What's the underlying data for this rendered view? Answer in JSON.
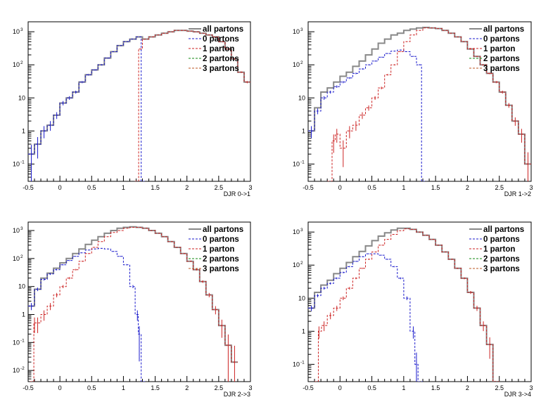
{
  "legend_entries": [
    {
      "label": "all partons",
      "color": "#888888",
      "dash": false
    },
    {
      "label": "0 partons",
      "color": "#1a1acc",
      "dash": true
    },
    {
      "label": "1 parton",
      "color": "#cc2222",
      "dash": true
    },
    {
      "label": "2 partons",
      "color": "#118811",
      "dash": true
    },
    {
      "label": "3 partons",
      "color": "#bb5522",
      "dash": true
    }
  ],
  "chart_data": [
    {
      "type": "line",
      "xlabel": "DJR 0->1",
      "xlim": [
        -0.5,
        3
      ],
      "x_ticks": [
        "-0.5",
        "0",
        "0.5",
        "1",
        "1.5",
        "2",
        "2.5",
        "3"
      ],
      "y_log": true,
      "ylim": [
        0.03,
        2000
      ],
      "y_ticks": [
        {
          "v": 0.1,
          "t": "10",
          "e": "-1"
        },
        {
          "v": 1,
          "t": "1",
          "e": ""
        },
        {
          "v": 10,
          "t": "10",
          "e": ""
        },
        {
          "v": 100,
          "t": "10",
          "e": "2"
        },
        {
          "v": 1000,
          "t": "10",
          "e": "3"
        }
      ],
      "legend_placement": "top-right",
      "series": [
        {
          "name": "all partons",
          "color": "#888888",
          "dash": false,
          "err": false,
          "x": [
            -0.45,
            -0.35,
            -0.25,
            -0.15,
            -0.05,
            0.05,
            0.15,
            0.25,
            0.35,
            0.45,
            0.55,
            0.65,
            0.75,
            0.85,
            0.95,
            1.05,
            1.15,
            1.25,
            1.35,
            1.45,
            1.55,
            1.65,
            1.75,
            1.85,
            1.95,
            2.05,
            2.15,
            2.25,
            2.35,
            2.45,
            2.55,
            2.65,
            2.75,
            2.85,
            2.95
          ],
          "y": [
            0.2,
            0.4,
            1,
            1.5,
            3,
            7,
            10,
            15,
            30,
            50,
            70,
            100,
            160,
            250,
            380,
            500,
            600,
            700,
            600,
            700,
            800,
            900,
            1000,
            1100,
            1100,
            1050,
            1000,
            900,
            800,
            700,
            500,
            300,
            150,
            60,
            30
          ]
        },
        {
          "name": "0 partons",
          "color": "#1a1acc",
          "dash": true,
          "err": true,
          "x": [
            -0.45,
            -0.35,
            -0.25,
            -0.15,
            -0.05,
            0.05,
            0.15,
            0.25,
            0.35,
            0.45,
            0.55,
            0.65,
            0.75,
            0.85,
            0.95,
            1.05,
            1.15,
            1.25,
            1.31
          ],
          "y": [
            0.2,
            0.4,
            1,
            1.5,
            3,
            7,
            10,
            15,
            30,
            50,
            70,
            100,
            160,
            250,
            380,
            500,
            600,
            700,
            0.01
          ]
        },
        {
          "name": "1 parton",
          "color": "#cc2222",
          "dash": true,
          "err": true,
          "x": [
            1.23,
            1.25,
            1.35,
            1.45,
            1.55,
            1.65,
            1.75,
            1.85,
            1.95,
            2.05,
            2.15,
            2.25,
            2.35,
            2.45,
            2.55,
            2.65,
            2.75,
            2.85,
            2.95
          ],
          "y": [
            0.01,
            300,
            600,
            700,
            800,
            900,
            1000,
            1100,
            1100,
            1050,
            1000,
            900,
            800,
            700,
            500,
            300,
            150,
            60,
            30
          ]
        }
      ]
    },
    {
      "type": "line",
      "xlabel": "DJR 1->2",
      "xlim": [
        -0.5,
        3
      ],
      "x_ticks": [
        "-0.5",
        "0",
        "0.5",
        "1",
        "1.5",
        "2",
        "2.5",
        "3"
      ],
      "y_log": true,
      "ylim": [
        0.03,
        2000
      ],
      "y_ticks": [
        {
          "v": 0.1,
          "t": "10",
          "e": "-1"
        },
        {
          "v": 1,
          "t": "1",
          "e": ""
        },
        {
          "v": 10,
          "t": "10",
          "e": ""
        },
        {
          "v": 100,
          "t": "10",
          "e": "2"
        },
        {
          "v": 1000,
          "t": "10",
          "e": "3"
        }
      ],
      "legend_placement": "top-right",
      "series": [
        {
          "name": "all partons",
          "color": "#888888",
          "dash": false,
          "err": false,
          "x": [
            -0.45,
            -0.35,
            -0.25,
            -0.15,
            -0.05,
            0.05,
            0.15,
            0.25,
            0.35,
            0.45,
            0.55,
            0.65,
            0.75,
            0.85,
            0.95,
            1.05,
            1.15,
            1.25,
            1.35,
            1.45,
            1.55,
            1.65,
            1.75,
            1.85,
            1.95,
            2.05,
            2.15,
            2.25,
            2.35,
            2.45,
            2.55,
            2.65,
            2.75,
            2.85,
            2.95
          ],
          "y": [
            1,
            5,
            15,
            20,
            30,
            45,
            60,
            90,
            130,
            200,
            300,
            450,
            600,
            800,
            900,
            1100,
            1200,
            1300,
            1350,
            1300,
            1250,
            1100,
            900,
            700,
            500,
            300,
            180,
            100,
            55,
            30,
            15,
            6,
            2,
            0.8,
            0.1
          ]
        },
        {
          "name": "0 partons",
          "color": "#1a1acc",
          "dash": true,
          "err": true,
          "x": [
            -0.45,
            -0.35,
            -0.25,
            -0.15,
            -0.05,
            0.05,
            0.15,
            0.25,
            0.35,
            0.45,
            0.55,
            0.65,
            0.75,
            0.85,
            0.95,
            1.05,
            1.15,
            1.25,
            1.31
          ],
          "y": [
            1,
            4,
            10,
            15,
            22,
            30,
            40,
            55,
            75,
            100,
            130,
            170,
            220,
            260,
            280,
            250,
            180,
            100,
            0.01
          ]
        },
        {
          "name": "1 parton",
          "color": "#cc2222",
          "dash": true,
          "err": true,
          "x": [
            -0.15,
            -0.1,
            -0.05,
            0.05,
            0.15,
            0.25,
            0.35,
            0.45,
            0.55,
            0.65,
            0.75,
            0.85,
            0.95,
            1.05,
            1.15,
            1.25,
            1.35,
            1.45,
            1.55,
            1.65,
            1.75,
            1.85,
            1.95,
            2.05,
            2.15,
            2.25,
            2.35,
            2.45,
            2.55,
            2.65,
            2.75,
            2.85,
            2.95
          ],
          "y": [
            0.01,
            0.5,
            0.8,
            0.3,
            1,
            1.5,
            3,
            5,
            10,
            20,
            50,
            100,
            250,
            500,
            800,
            1100,
            1300,
            1300,
            1250,
            1100,
            900,
            700,
            500,
            300,
            180,
            100,
            55,
            30,
            15,
            6,
            2,
            0.8,
            0.1
          ]
        }
      ]
    },
    {
      "type": "line",
      "xlabel": "DJR 2->3",
      "xlim": [
        -0.5,
        3
      ],
      "x_ticks": [
        "-0.5",
        "0",
        "0.5",
        "1",
        "1.5",
        "2",
        "2.5",
        "3"
      ],
      "y_log": true,
      "ylim": [
        0.004,
        2000
      ],
      "y_ticks": [
        {
          "v": 0.01,
          "t": "10",
          "e": "-2"
        },
        {
          "v": 0.1,
          "t": "10",
          "e": "-1"
        },
        {
          "v": 1,
          "t": "1",
          "e": ""
        },
        {
          "v": 10,
          "t": "10",
          "e": ""
        },
        {
          "v": 100,
          "t": "10",
          "e": "2"
        },
        {
          "v": 1000,
          "t": "10",
          "e": "3"
        }
      ],
      "legend_placement": "top-right",
      "series": [
        {
          "name": "all partons",
          "color": "#888888",
          "dash": false,
          "err": false,
          "x": [
            -0.45,
            -0.35,
            -0.25,
            -0.15,
            -0.05,
            0.05,
            0.15,
            0.25,
            0.35,
            0.45,
            0.55,
            0.65,
            0.75,
            0.85,
            0.95,
            1.05,
            1.15,
            1.25,
            1.35,
            1.45,
            1.55,
            1.65,
            1.75,
            1.85,
            1.95,
            2.05,
            2.15,
            2.25,
            2.35,
            2.45,
            2.55,
            2.65,
            2.75
          ],
          "y": [
            2,
            8,
            20,
            30,
            45,
            70,
            100,
            150,
            220,
            320,
            450,
            600,
            800,
            1000,
            1200,
            1300,
            1350,
            1300,
            1200,
            1000,
            800,
            600,
            400,
            250,
            150,
            80,
            40,
            15,
            5,
            1.5,
            0.4,
            0.08,
            0.02
          ]
        },
        {
          "name": "0 partons",
          "color": "#1a1acc",
          "dash": true,
          "err": true,
          "x": [
            -0.45,
            -0.35,
            -0.25,
            -0.15,
            -0.05,
            0.05,
            0.15,
            0.25,
            0.35,
            0.45,
            0.55,
            0.65,
            0.75,
            0.85,
            0.95,
            1.05,
            1.15,
            1.22,
            1.25,
            1.31
          ],
          "y": [
            2,
            8,
            18,
            28,
            40,
            60,
            85,
            120,
            160,
            200,
            220,
            230,
            220,
            180,
            120,
            60,
            10,
            1,
            0.2,
            0.003
          ]
        },
        {
          "name": "1 parton",
          "color": "#cc2222",
          "dash": true,
          "err": true,
          "x": [
            -0.42,
            -0.4,
            -0.35,
            -0.25,
            -0.15,
            -0.05,
            0.05,
            0.15,
            0.25,
            0.35,
            0.45,
            0.55,
            0.65,
            0.75,
            0.85,
            0.95,
            1.05,
            1.15,
            1.25,
            1.35,
            1.45,
            1.55,
            1.65,
            1.75,
            1.85,
            1.95,
            2.05,
            2.15,
            2.25,
            2.35,
            2.45,
            2.55,
            2.65,
            2.75
          ],
          "y": [
            0.003,
            0.5,
            0.5,
            1,
            2,
            5,
            10,
            20,
            40,
            80,
            150,
            250,
            400,
            600,
            850,
            1000,
            1200,
            1300,
            1300,
            1200,
            1000,
            800,
            600,
            400,
            250,
            150,
            80,
            40,
            15,
            5,
            1.5,
            0.4,
            0.08,
            0.02
          ]
        }
      ]
    },
    {
      "type": "line",
      "xlabel": "DJR 3->4",
      "xlim": [
        -0.5,
        3
      ],
      "x_ticks": [
        "-0.5",
        "0",
        "0.5",
        "1",
        "1.5",
        "2",
        "2.5",
        "3"
      ],
      "y_log": true,
      "ylim": [
        0.03,
        2000
      ],
      "y_ticks": [
        {
          "v": 0.1,
          "t": "10",
          "e": "-1"
        },
        {
          "v": 1,
          "t": "1",
          "e": ""
        },
        {
          "v": 10,
          "t": "10",
          "e": ""
        },
        {
          "v": 100,
          "t": "10",
          "e": "2"
        },
        {
          "v": 1000,
          "t": "10",
          "e": "3"
        }
      ],
      "legend_placement": "top-right",
      "series": [
        {
          "name": "all partons",
          "color": "#888888",
          "dash": false,
          "err": false,
          "x": [
            -0.45,
            -0.35,
            -0.25,
            -0.15,
            -0.05,
            0.05,
            0.15,
            0.25,
            0.35,
            0.45,
            0.55,
            0.65,
            0.75,
            0.85,
            0.95,
            1.05,
            1.15,
            1.25,
            1.35,
            1.45,
            1.55,
            1.65,
            1.75,
            1.85,
            1.95,
            2.05,
            2.15,
            2.25,
            2.35,
            2.45
          ],
          "y": [
            5,
            15,
            25,
            35,
            55,
            80,
            120,
            180,
            260,
            380,
            550,
            750,
            950,
            1150,
            1300,
            1300,
            1200,
            1000,
            800,
            600,
            400,
            250,
            150,
            80,
            40,
            15,
            5,
            1.5,
            0.4,
            0.01
          ]
        },
        {
          "name": "0 partons",
          "color": "#1a1acc",
          "dash": true,
          "err": true,
          "x": [
            -0.45,
            -0.35,
            -0.25,
            -0.15,
            -0.05,
            0.05,
            0.15,
            0.25,
            0.35,
            0.45,
            0.55,
            0.65,
            0.75,
            0.85,
            0.95,
            1.05,
            1.15,
            1.2,
            1.25
          ],
          "y": [
            5,
            12,
            20,
            28,
            40,
            60,
            90,
            130,
            180,
            220,
            220,
            200,
            150,
            90,
            40,
            10,
            1,
            0.1,
            0.01
          ]
        },
        {
          "name": "1 parton",
          "color": "#cc2222",
          "dash": true,
          "err": true,
          "x": [
            -0.35,
            -0.33,
            -0.25,
            -0.15,
            -0.05,
            0.05,
            0.15,
            0.25,
            0.35,
            0.45,
            0.55,
            0.65,
            0.75,
            0.85,
            0.95,
            1.05,
            1.15,
            1.25,
            1.35,
            1.45,
            1.55,
            1.65,
            1.75,
            1.85,
            1.95,
            2.05,
            2.15,
            2.25,
            2.35,
            2.45
          ],
          "y": [
            0.01,
            1,
            1.5,
            3,
            5,
            10,
            20,
            40,
            80,
            150,
            250,
            400,
            600,
            850,
            1100,
            1250,
            1200,
            1000,
            800,
            600,
            400,
            250,
            150,
            80,
            40,
            15,
            5,
            1.5,
            0.4,
            0.01
          ]
        }
      ]
    }
  ]
}
